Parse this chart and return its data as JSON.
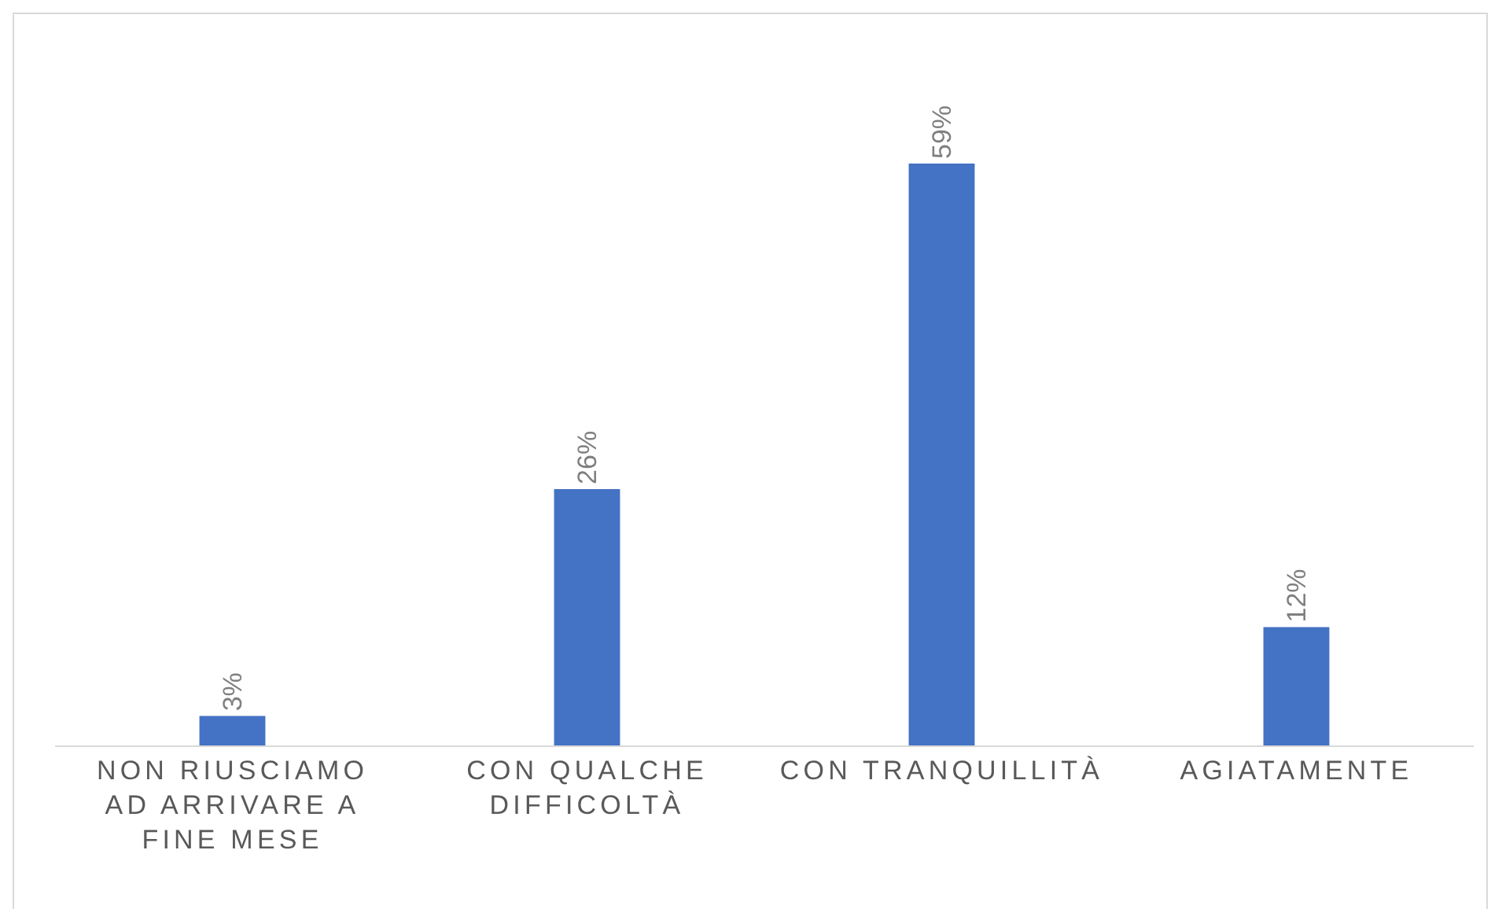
{
  "chart_data": {
    "type": "bar",
    "categories": [
      "NON RIUSCIAMO\nAD ARRIVARE A\nFINE MESE",
      "CON QUALCHE\nDIFFICOLTÀ",
      "CON TRANQUILLITÀ",
      "AGIATAMENTE"
    ],
    "values": [
      3,
      26,
      59,
      12
    ],
    "color": "#4472c4",
    "value_labels": [
      "3%",
      "26%",
      "59%",
      "12%"
    ],
    "tick_labels": "x"
  }
}
